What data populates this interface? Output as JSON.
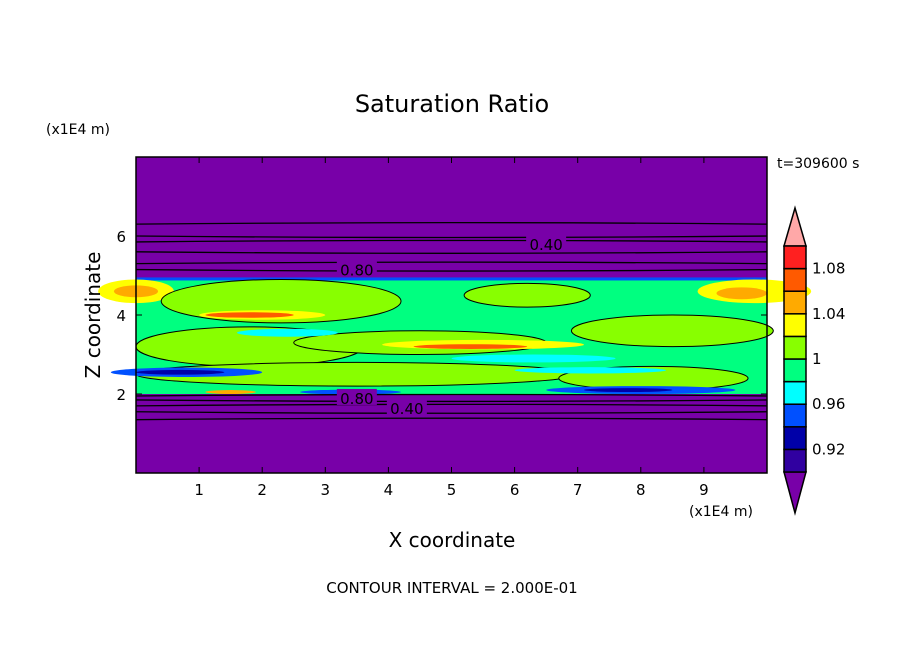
{
  "chart_data": {
    "type": "contour",
    "title": "Saturation Ratio",
    "xlabel": "X coordinate",
    "ylabel": "Z coordinate",
    "x_unit": "(x1E4 m)",
    "y_unit": "(x1E4 m)",
    "xlim": [
      0,
      10
    ],
    "ylim": [
      0,
      8
    ],
    "xticks": [
      "1",
      "2",
      "3",
      "4",
      "5",
      "6",
      "7",
      "8",
      "9"
    ],
    "yticks": [
      "2",
      "4",
      "6"
    ],
    "time_label": "t=309600 s",
    "footer": "CONTOUR INTERVAL = 2.000E-01",
    "contour_labels": [
      {
        "text": "0.40",
        "x": 6.5,
        "z": 5.8
      },
      {
        "text": "0.80",
        "x": 3.5,
        "z": 5.15
      },
      {
        "text": "0.80",
        "x": 3.5,
        "z": 1.9
      },
      {
        "text": "0.40",
        "x": 3.5,
        "z": 1.65
      }
    ],
    "colorbar": {
      "levels": [
        0.9,
        0.92,
        0.94,
        0.96,
        0.98,
        1.0,
        1.02,
        1.04,
        1.06,
        1.08,
        1.1
      ],
      "colors": [
        "#3000a0",
        "#0000a8",
        "#0050ff",
        "#00ffff",
        "#00ff80",
        "#88ff00",
        "#ffff00",
        "#ffaa00",
        "#ff5a00",
        "#ff2020"
      ],
      "under_color": "#7800a8",
      "over_color": "#ffa8a8",
      "tick_labels": [
        "0.92",
        "0.96",
        "1",
        "1.04",
        "1.08"
      ]
    },
    "layer_extent_z": [
      2.0,
      4.95
    ]
  }
}
